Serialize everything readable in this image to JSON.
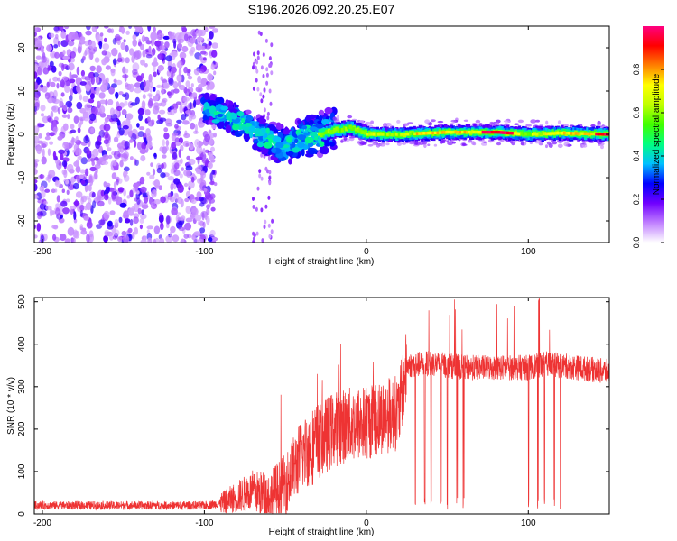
{
  "title": "S196.2026.092.20.25.E07",
  "chart_data": [
    {
      "type": "heatmap",
      "panel": "spectrogram",
      "xlabel": "Height of straight line (km)",
      "ylabel": "Frequency (Hz)",
      "xlim": [
        -205,
        150
      ],
      "ylim": [
        -25,
        25
      ],
      "xticks": [
        -200,
        -100,
        0,
        100
      ],
      "yticks": [
        -20,
        -10,
        0,
        10,
        20
      ],
      "colorbar": {
        "label": "Normalized spectral amplitude",
        "range": [
          0,
          1
        ],
        "ticks": [
          "0.0",
          "0.2",
          "0.4",
          "0.6",
          "0.8"
        ],
        "colors": [
          "#ffffff",
          "#c080ff",
          "#7000ff",
          "#0000ff",
          "#00c0ff",
          "#00ff80",
          "#40ff00",
          "#c0ff00",
          "#ffff00",
          "#ff8000",
          "#ff0000",
          "#ff0080"
        ]
      },
      "regions": [
        {
          "name": "scattered noise",
          "x": [
            -205,
            -93
          ],
          "freq": [
            -25,
            25
          ],
          "amplitude": [
            0.05,
            0.25
          ]
        },
        {
          "name": "transition",
          "x": [
            -93,
            -25
          ],
          "freq": [
            -10,
            10
          ],
          "amplitude": [
            0.15,
            0.45
          ]
        },
        {
          "name": "narrow line",
          "x": [
            -25,
            150
          ],
          "freq": [
            -1.5,
            1.5
          ],
          "amplitude": [
            0.4,
            1.0
          ]
        }
      ],
      "line_center_hz": [
        {
          "x": -100,
          "y": 6
        },
        {
          "x": -90,
          "y": 5
        },
        {
          "x": -80,
          "y": 3
        },
        {
          "x": -70,
          "y": 1
        },
        {
          "x": -60,
          "y": -1
        },
        {
          "x": -50,
          "y": -3
        },
        {
          "x": -40,
          "y": -1
        },
        {
          "x": -30,
          "y": 0
        },
        {
          "x": -20,
          "y": 1
        },
        {
          "x": -10,
          "y": 1.5
        },
        {
          "x": 0,
          "y": 0
        },
        {
          "x": 20,
          "y": 0
        },
        {
          "x": 50,
          "y": 0.5
        },
        {
          "x": 80,
          "y": 0.5
        },
        {
          "x": 100,
          "y": 0
        },
        {
          "x": 120,
          "y": 0.3
        },
        {
          "x": 150,
          "y": 0
        }
      ]
    },
    {
      "type": "line",
      "panel": "snr",
      "xlabel": "Height of straight line (km)",
      "ylabel": "SNR (10 * v/v)",
      "xlim": [
        -205,
        150
      ],
      "ylim": [
        0,
        510
      ],
      "xticks": [
        -200,
        -100,
        0,
        100
      ],
      "yticks": [
        0,
        100,
        200,
        300,
        400,
        500
      ],
      "color": "#ee3333",
      "series": [
        {
          "name": "SNR",
          "x": [
            -205,
            -180,
            -150,
            -120,
            -100,
            -90,
            -80,
            -70,
            -60,
            -50,
            -40,
            -30,
            -20,
            -10,
            0,
            10,
            20,
            25,
            40,
            60,
            80,
            100,
            110,
            120,
            130,
            150
          ],
          "y": [
            20,
            20,
            20,
            20,
            20,
            25,
            40,
            55,
            40,
            70,
            140,
            170,
            200,
            210,
            215,
            230,
            240,
            350,
            355,
            345,
            345,
            345,
            355,
            350,
            345,
            335
          ]
        }
      ],
      "dropouts_x": [
        30,
        36,
        40,
        46,
        50,
        56,
        60,
        100,
        106,
        110,
        116,
        120
      ]
    }
  ]
}
